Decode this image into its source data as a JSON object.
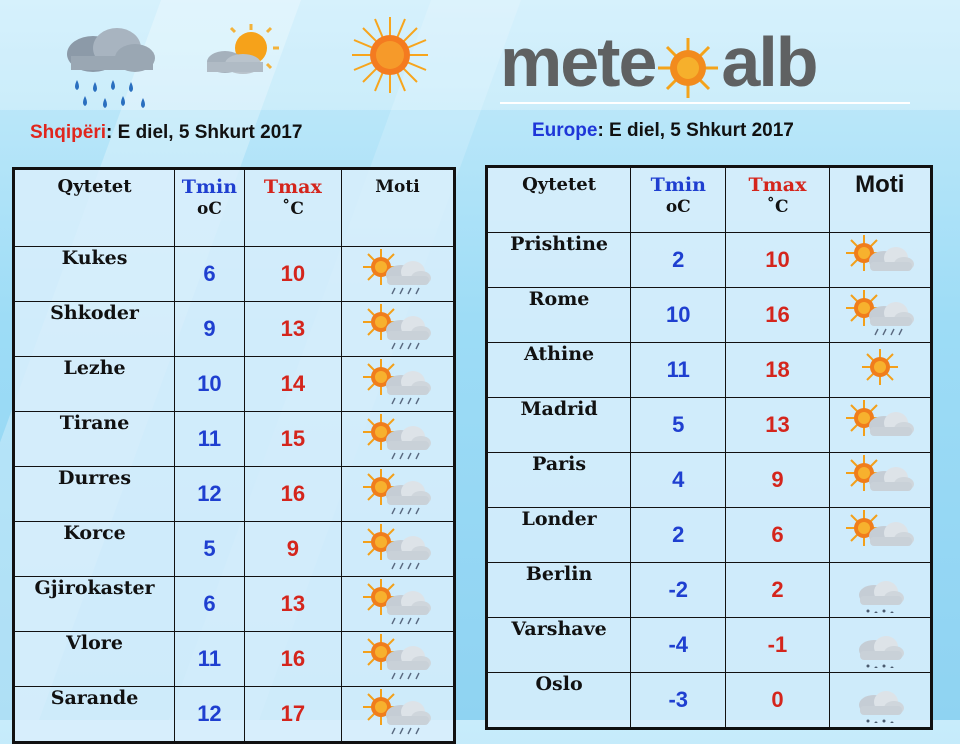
{
  "logo": {
    "part1": "mete",
    "part2": "alb"
  },
  "albania": {
    "region": "Shqipëri",
    "date": ": E diel, 5 Shkurt 2017",
    "headers": {
      "city": "Qytetet",
      "min": "Tmin",
      "min_unit": "oC",
      "max": "Tmax",
      "max_unit": "˚C",
      "weather": "Moti"
    },
    "rows": [
      {
        "city": "Kukes",
        "min": "6",
        "max": "10",
        "icon": "sun-cloud-rain-icon"
      },
      {
        "city": "Shkoder",
        "min": "9",
        "max": "13",
        "icon": "sun-cloud-rain-icon"
      },
      {
        "city": "Lezhe",
        "min": "10",
        "max": "14",
        "icon": "sun-cloud-rain-icon"
      },
      {
        "city": "Tirane",
        "min": "11",
        "max": "15",
        "icon": "sun-cloud-rain-icon"
      },
      {
        "city": "Durres",
        "min": "12",
        "max": "16",
        "icon": "sun-cloud-rain-icon"
      },
      {
        "city": "Korce",
        "min": "5",
        "max": "9",
        "icon": "sun-cloud-rain-icon"
      },
      {
        "city": "Gjirokaster",
        "min": "6",
        "max": "13",
        "icon": "sun-cloud-rain-icon"
      },
      {
        "city": "Vlore",
        "min": "11",
        "max": "16",
        "icon": "sun-cloud-rain-icon"
      },
      {
        "city": "Sarande",
        "min": "12",
        "max": "17",
        "icon": "sun-cloud-rain-icon"
      }
    ]
  },
  "europe": {
    "region": "Europe",
    "date": ": E diel, 5 Shkurt 2017",
    "headers": {
      "city": "Qytetet",
      "min": "Tmin",
      "min_unit": "oC",
      "max": "Tmax",
      "max_unit": "˚C",
      "weather": "Moti"
    },
    "rows": [
      {
        "city": "Prishtine",
        "min": "2",
        "max": "10",
        "icon": "sun-cloud-icon"
      },
      {
        "city": "Rome",
        "min": "10",
        "max": "16",
        "icon": "sun-cloud-rain-icon"
      },
      {
        "city": "Athine",
        "min": "11",
        "max": "18",
        "icon": "sun-icon"
      },
      {
        "city": "Madrid",
        "min": "5",
        "max": "13",
        "icon": "sun-cloud-icon"
      },
      {
        "city": "Paris",
        "min": "4",
        "max": "9",
        "icon": "sun-cloud-icon"
      },
      {
        "city": "Londer",
        "min": "2",
        "max": "6",
        "icon": "sun-cloud-icon"
      },
      {
        "city": "Berlin",
        "min": "-2",
        "max": "2",
        "icon": "snow-cloud-icon"
      },
      {
        "city": "Varshave",
        "min": "-4",
        "max": "-1",
        "icon": "snow-cloud-icon"
      },
      {
        "city": "Oslo",
        "min": "-3",
        "max": "0",
        "icon": "snow-cloud-icon"
      }
    ]
  }
}
